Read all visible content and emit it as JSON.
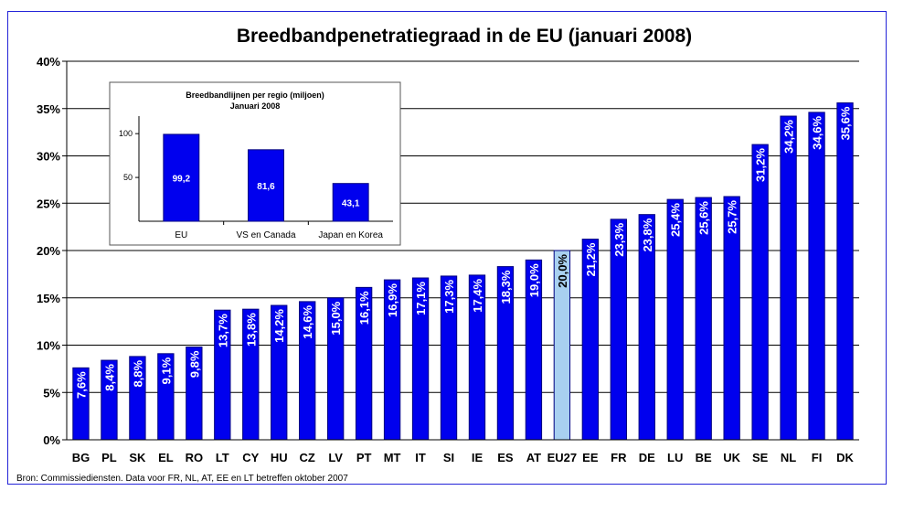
{
  "chart_data": [
    {
      "type": "bar",
      "title": "Breedbandpenetratiegraad in de EU (januari 2008)",
      "categories": [
        "BG",
        "PL",
        "SK",
        "EL",
        "RO",
        "LT",
        "CY",
        "HU",
        "CZ",
        "LV",
        "PT",
        "MT",
        "IT",
        "SI",
        "IE",
        "ES",
        "AT",
        "EU27",
        "EE",
        "FR",
        "DE",
        "LU",
        "BE",
        "UK",
        "SE",
        "NL",
        "FI",
        "DK"
      ],
      "values": [
        7.6,
        8.4,
        8.8,
        9.1,
        9.8,
        13.7,
        13.8,
        14.2,
        14.6,
        15.0,
        16.1,
        16.9,
        17.1,
        17.3,
        17.4,
        18.3,
        19.0,
        20.0,
        21.2,
        23.3,
        23.8,
        25.4,
        25.6,
        25.7,
        31.2,
        34.2,
        34.6,
        35.6
      ],
      "data_labels": [
        "7,6%",
        "8,4%",
        "8,8%",
        "9,1%",
        "9,8%",
        "13,7%",
        "13,8%",
        "14,2%",
        "14,6%",
        "15,0%",
        "16,1%",
        "16,9%",
        "17,1%",
        "17,3%",
        "17,4%",
        "18,3%",
        "19,0%",
        "20,0%",
        "21,2%",
        "23,3%",
        "23,8%",
        "25,4%",
        "25,6%",
        "25,7%",
        "31,2%",
        "34,2%",
        "34,6%",
        "35,6%"
      ],
      "highlight_category": "EU27",
      "ylim": [
        0,
        40
      ],
      "yticks": [
        0,
        5,
        10,
        15,
        20,
        25,
        30,
        35,
        40
      ],
      "ytick_labels": [
        "0%",
        "5%",
        "10%",
        "15%",
        "20%",
        "25%",
        "30%",
        "35%",
        "40%"
      ],
      "xlabel": "",
      "ylabel": "",
      "grid": true,
      "colors": {
        "bar": "#0000ee",
        "highlight": "#a8d0f0",
        "bar_edge": "#000080",
        "grid": "#000000",
        "frame": "#2323d8"
      }
    },
    {
      "type": "bar",
      "title": "Breedbandlijnen per regio (miljoen)",
      "subtitle": "Januari 2008",
      "categories": [
        "EU",
        "VS en Canada",
        "Japan en Korea"
      ],
      "values": [
        99.2,
        81.6,
        43.1
      ],
      "data_labels": [
        "99,2",
        "81,6",
        "43,1"
      ],
      "ylim": [
        0,
        120
      ],
      "yticks": [
        50,
        100
      ],
      "ytick_labels": [
        "50",
        "100"
      ],
      "grid": false,
      "colors": {
        "bar": "#0000ee"
      }
    }
  ],
  "source_note": "Bron: Commissiediensten. Data voor FR, NL, AT, EE en LT betreffen oktober 2007"
}
